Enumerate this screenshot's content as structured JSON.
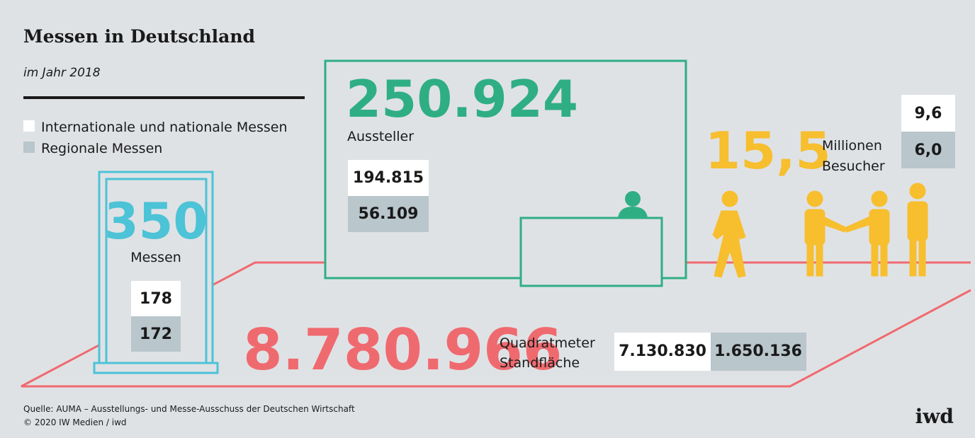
{
  "header": {
    "title": "Messen in Deutschland",
    "subtitle": "im Jahr 2018"
  },
  "legend": [
    "Internationale und nationale Messen",
    "Regionale Messen"
  ],
  "messen": {
    "total": "350",
    "label": "Messen",
    "international": "178",
    "regional": "172"
  },
  "aussteller": {
    "total": "250.924",
    "label": "Aussteller",
    "international": "194.815",
    "regional": "56.109"
  },
  "besucher": {
    "total": "15,5",
    "label": [
      "Millionen",
      "Besucher"
    ],
    "international": "9,6",
    "regional": "6,0"
  },
  "flaeche": {
    "total": "8.780.966",
    "label": [
      "Quadratmeter",
      "Standfläche"
    ],
    "international": "7.130.830",
    "regional": "1.650.136"
  },
  "footer": {
    "source": "Quelle: AUMA – Ausstellungs- und Messe-Ausschuss der Deutschen Wirtschaft",
    "copyright": "© 2020 IW Medien / iwd",
    "logo": "iwd"
  }
}
